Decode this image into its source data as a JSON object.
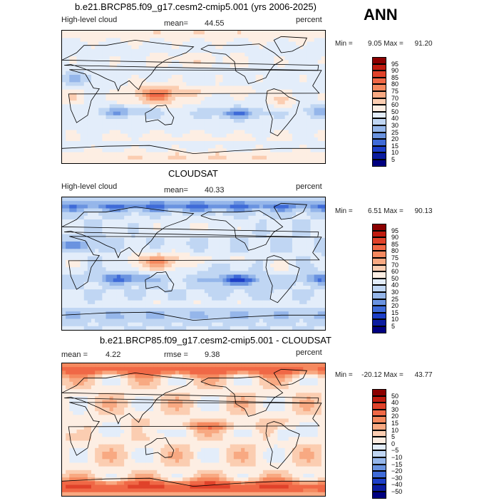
{
  "figure": {
    "season": "ANN"
  },
  "panels": [
    {
      "title": "b.e21.BRCP85.f09_g17.cesm2-cmip5.001 (yrs 2006-2025)",
      "left_label": "High-level cloud",
      "stat1_label": "mean=",
      "stat1_value": "44.55",
      "stat2_label": "",
      "stat2_value": "",
      "units": "percent",
      "min_label": "Min =",
      "min_value": "9.05",
      "max_label": "Max =",
      "max_value": "91.20",
      "colorbar": {
        "levels": [
          "95",
          "90",
          "85",
          "80",
          "75",
          "70",
          "60",
          "50",
          "40",
          "30",
          "25",
          "20",
          "15",
          "10",
          "5"
        ],
        "colors": [
          "#8b0000",
          "#c01c10",
          "#e0422a",
          "#f06846",
          "#f5895f",
          "#f8a982",
          "#fbcdb1",
          "#fdeee3",
          "#e3edfa",
          "#c0d6f3",
          "#95b6ea",
          "#6a93e0",
          "#3f6bd8",
          "#1d3fc8",
          "#0b1ca0",
          "#000080"
        ]
      },
      "field": "model"
    },
    {
      "title": "CLOUDSAT",
      "left_label": "High-level cloud",
      "stat1_label": "mean=",
      "stat1_value": "40.33",
      "stat2_label": "",
      "stat2_value": "",
      "units": "percent",
      "min_label": "Min =",
      "min_value": "6.51",
      "max_label": "Max =",
      "max_value": "90.13",
      "colorbar": {
        "levels": [
          "95",
          "90",
          "85",
          "80",
          "75",
          "70",
          "60",
          "50",
          "40",
          "30",
          "25",
          "20",
          "15",
          "10",
          "5"
        ],
        "colors": [
          "#8b0000",
          "#c01c10",
          "#e0422a",
          "#f06846",
          "#f5895f",
          "#f8a982",
          "#fbcdb1",
          "#fdeee3",
          "#e3edfa",
          "#c0d6f3",
          "#95b6ea",
          "#6a93e0",
          "#3f6bd8",
          "#1d3fc8",
          "#0b1ca0",
          "#000080"
        ]
      },
      "field": "obs"
    },
    {
      "title": "b.e21.BRCP85.f09_g17.cesm2-cmip5.001 - CLOUDSAT",
      "left_label": "",
      "stat1_label": "mean =",
      "stat1_value": "4.22",
      "stat2_label": "rmse =",
      "stat2_value": "9.38",
      "units": "percent",
      "min_label": "Min =",
      "min_value": "-20.12",
      "max_label": "Max =",
      "max_value": "43.77",
      "colorbar": {
        "levels": [
          "50",
          "40",
          "30",
          "20",
          "15",
          "10",
          "5",
          "0",
          "−5",
          "−10",
          "−15",
          "−20",
          "−30",
          "−40",
          "−50"
        ],
        "colors": [
          "#8b0000",
          "#c01c10",
          "#e0422a",
          "#f06846",
          "#f5895f",
          "#f8a982",
          "#fbcdb1",
          "#fdeee3",
          "#e3edfa",
          "#c0d6f3",
          "#95b6ea",
          "#6a93e0",
          "#3f6bd8",
          "#1d3fc8",
          "#0b1ca0",
          "#000080"
        ]
      },
      "field": "diff"
    }
  ],
  "chart_data": [
    {
      "type": "heatmap",
      "title": "b.e21.BRCP85.f09_g17.cesm2-cmip5.001 (yrs 2006-2025)",
      "variable": "High-level cloud",
      "units": "percent",
      "mean": 44.55,
      "min": 9.05,
      "max": 91.2,
      "contour_levels": [
        5,
        10,
        15,
        20,
        25,
        30,
        40,
        50,
        60,
        70,
        75,
        80,
        85,
        90,
        95
      ]
    },
    {
      "type": "heatmap",
      "title": "CLOUDSAT",
      "variable": "High-level cloud",
      "units": "percent",
      "mean": 40.33,
      "min": 6.51,
      "max": 90.13,
      "contour_levels": [
        5,
        10,
        15,
        20,
        25,
        30,
        40,
        50,
        60,
        70,
        75,
        80,
        85,
        90,
        95
      ]
    },
    {
      "type": "heatmap",
      "title": "b.e21.BRCP85.f09_g17.cesm2-cmip5.001 - CLOUDSAT",
      "units": "percent",
      "mean": 4.22,
      "rmse": 9.38,
      "min": -20.12,
      "max": 43.77,
      "contour_levels": [
        -50,
        -40,
        -30,
        -20,
        -15,
        -10,
        -5,
        0,
        5,
        10,
        15,
        20,
        30,
        40,
        50
      ]
    }
  ]
}
